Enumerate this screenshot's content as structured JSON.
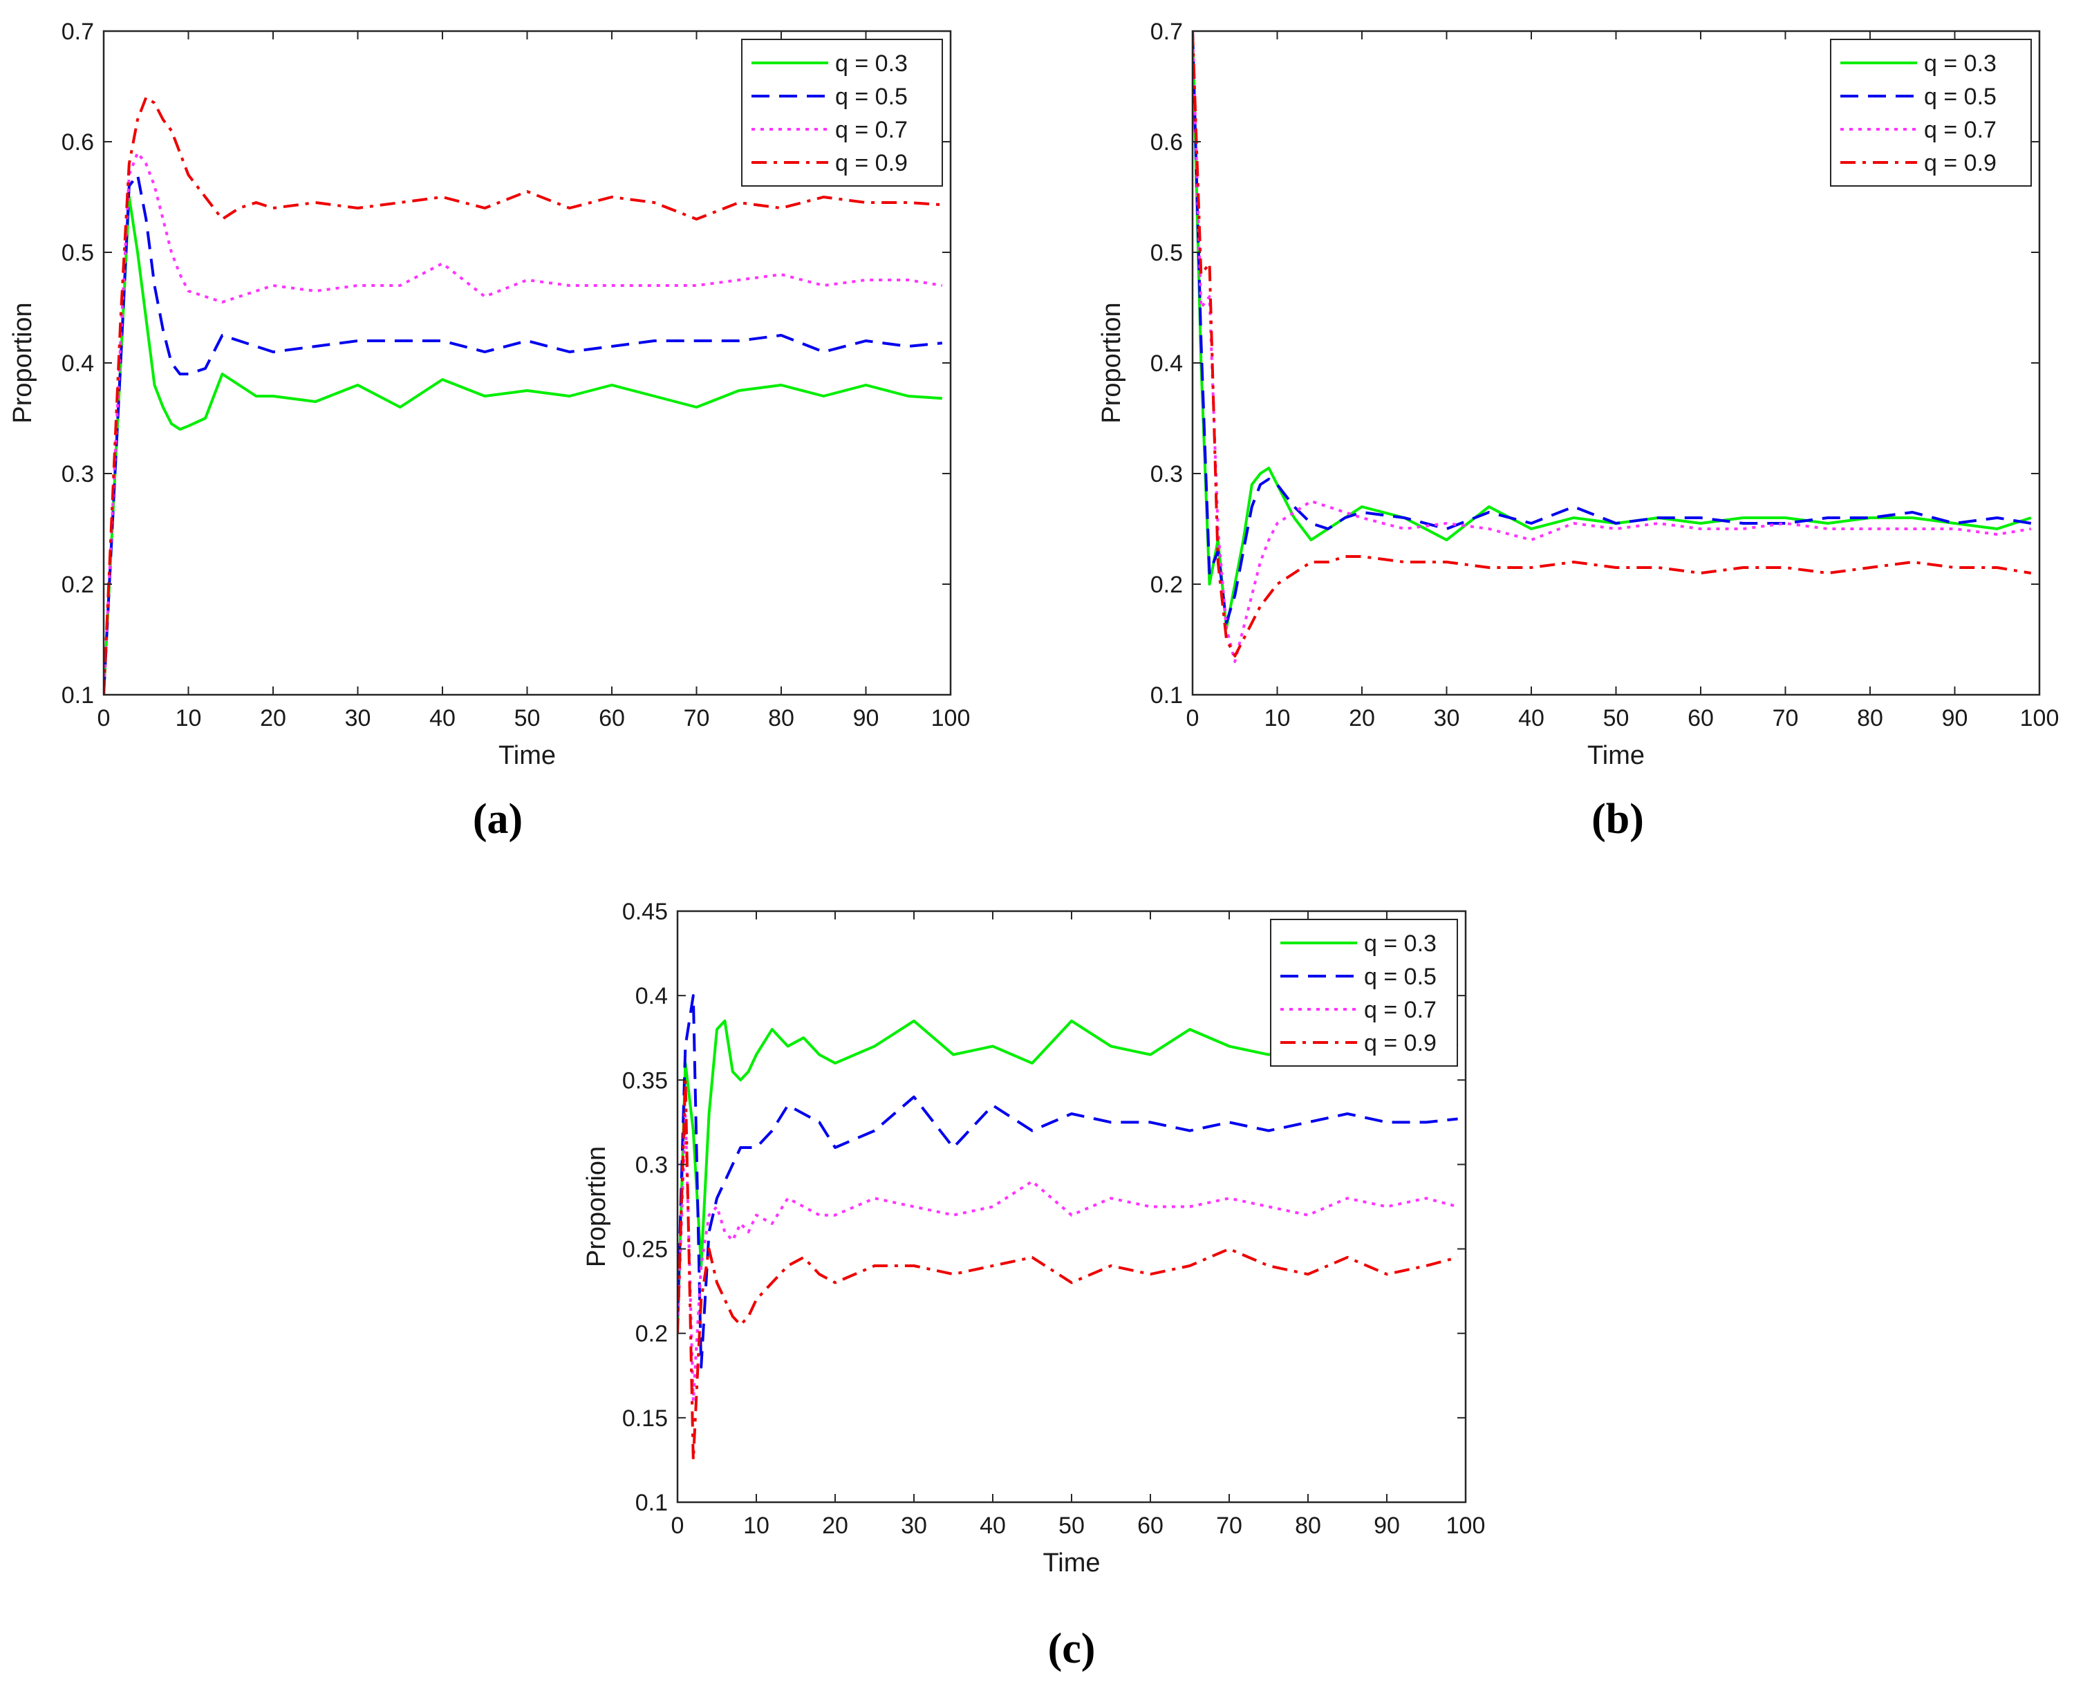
{
  "captions": [
    "(a)",
    "(b)",
    "(c)"
  ],
  "chart_data": [
    {
      "type": "line",
      "panel": "(a)",
      "xlabel": "Time",
      "ylabel": "Proportion",
      "xlim": [
        0,
        100
      ],
      "ylim": [
        0.1,
        0.7
      ],
      "xticks": [
        "0",
        "10",
        "20",
        "30",
        "40",
        "50",
        "60",
        "70",
        "80",
        "90",
        "100"
      ],
      "yticks": [
        "0.1",
        "0.2",
        "0.3",
        "0.4",
        "0.5",
        "0.6",
        "0.7"
      ],
      "legend_position": "top-right",
      "series": [
        {
          "name": "q = 0.3",
          "color": "#00ee00",
          "dash": "solid",
          "x": [
            0,
            1,
            2,
            3,
            4,
            5,
            6,
            7,
            8,
            9,
            10,
            12,
            14,
            16,
            18,
            20,
            25,
            30,
            35,
            40,
            45,
            50,
            55,
            60,
            65,
            70,
            75,
            80,
            85,
            90,
            95,
            99
          ],
          "y": [
            0.1,
            0.25,
            0.4,
            0.55,
            0.5,
            0.44,
            0.38,
            0.36,
            0.345,
            0.34,
            0.343,
            0.35,
            0.39,
            0.38,
            0.37,
            0.37,
            0.365,
            0.38,
            0.36,
            0.385,
            0.37,
            0.375,
            0.37,
            0.38,
            0.37,
            0.36,
            0.375,
            0.38,
            0.37,
            0.38,
            0.37,
            0.368
          ]
        },
        {
          "name": "q = 0.5",
          "color": "#0000ee",
          "dash": "dash",
          "x": [
            0,
            1,
            2,
            3,
            4,
            5,
            6,
            7,
            8,
            9,
            10,
            12,
            14,
            16,
            18,
            20,
            25,
            30,
            35,
            40,
            45,
            50,
            55,
            60,
            65,
            70,
            75,
            80,
            85,
            90,
            95,
            99
          ],
          "y": [
            0.1,
            0.25,
            0.4,
            0.56,
            0.57,
            0.53,
            0.47,
            0.43,
            0.4,
            0.39,
            0.39,
            0.395,
            0.425,
            0.42,
            0.415,
            0.41,
            0.415,
            0.42,
            0.42,
            0.42,
            0.41,
            0.42,
            0.41,
            0.415,
            0.42,
            0.42,
            0.42,
            0.425,
            0.41,
            0.42,
            0.415,
            0.418
          ]
        },
        {
          "name": "q = 0.7",
          "color": "#ff33ff",
          "dash": "dot",
          "x": [
            0,
            1,
            2,
            3,
            4,
            5,
            6,
            7,
            8,
            9,
            10,
            12,
            14,
            16,
            18,
            20,
            25,
            30,
            35,
            40,
            45,
            50,
            55,
            60,
            65,
            70,
            75,
            80,
            85,
            90,
            95,
            99
          ],
          "y": [
            0.1,
            0.26,
            0.42,
            0.57,
            0.59,
            0.58,
            0.56,
            0.53,
            0.5,
            0.48,
            0.465,
            0.46,
            0.455,
            0.46,
            0.465,
            0.47,
            0.465,
            0.47,
            0.47,
            0.49,
            0.46,
            0.475,
            0.47,
            0.47,
            0.47,
            0.47,
            0.475,
            0.48,
            0.47,
            0.475,
            0.475,
            0.47
          ]
        },
        {
          "name": "q = 0.9",
          "color": "#ee0000",
          "dash": "dashdot",
          "x": [
            0,
            1,
            2,
            3,
            4,
            5,
            6,
            7,
            8,
            9,
            10,
            12,
            14,
            16,
            18,
            20,
            25,
            30,
            35,
            40,
            45,
            50,
            55,
            60,
            65,
            70,
            75,
            80,
            85,
            90,
            95,
            99
          ],
          "y": [
            0.1,
            0.27,
            0.44,
            0.58,
            0.62,
            0.64,
            0.635,
            0.62,
            0.61,
            0.59,
            0.57,
            0.55,
            0.53,
            0.54,
            0.545,
            0.54,
            0.545,
            0.54,
            0.545,
            0.55,
            0.54,
            0.555,
            0.54,
            0.55,
            0.545,
            0.53,
            0.545,
            0.54,
            0.55,
            0.545,
            0.545,
            0.543
          ]
        }
      ]
    },
    {
      "type": "line",
      "panel": "(b)",
      "xlabel": "Time",
      "ylabel": "Proportion",
      "xlim": [
        0,
        100
      ],
      "ylim": [
        0.1,
        0.7
      ],
      "xticks": [
        "0",
        "10",
        "20",
        "30",
        "40",
        "50",
        "60",
        "70",
        "80",
        "90",
        "100"
      ],
      "yticks": [
        "0.1",
        "0.2",
        "0.3",
        "0.4",
        "0.5",
        "0.6",
        "0.7"
      ],
      "legend_position": "top-right",
      "series": [
        {
          "name": "q = 0.3",
          "color": "#00ee00",
          "dash": "solid",
          "x": [
            0,
            1,
            2,
            3,
            4,
            5,
            6,
            7,
            8,
            9,
            10,
            12,
            14,
            16,
            18,
            20,
            25,
            30,
            35,
            40,
            45,
            50,
            55,
            60,
            65,
            70,
            75,
            80,
            85,
            90,
            95,
            99
          ],
          "y": [
            0.7,
            0.4,
            0.2,
            0.24,
            0.16,
            0.2,
            0.24,
            0.29,
            0.3,
            0.305,
            0.29,
            0.26,
            0.24,
            0.25,
            0.26,
            0.27,
            0.26,
            0.24,
            0.27,
            0.25,
            0.26,
            0.255,
            0.26,
            0.255,
            0.26,
            0.26,
            0.255,
            0.26,
            0.26,
            0.255,
            0.25,
            0.26
          ]
        },
        {
          "name": "q = 0.5",
          "color": "#0000ee",
          "dash": "dash",
          "x": [
            0,
            1,
            2,
            3,
            4,
            5,
            6,
            7,
            8,
            9,
            10,
            12,
            14,
            16,
            18,
            20,
            25,
            30,
            35,
            40,
            45,
            50,
            55,
            60,
            65,
            70,
            75,
            80,
            85,
            90,
            95,
            99
          ],
          "y": [
            0.7,
            0.42,
            0.21,
            0.23,
            0.165,
            0.19,
            0.23,
            0.27,
            0.29,
            0.295,
            0.29,
            0.27,
            0.255,
            0.25,
            0.26,
            0.265,
            0.26,
            0.25,
            0.265,
            0.255,
            0.27,
            0.255,
            0.26,
            0.26,
            0.255,
            0.255,
            0.26,
            0.26,
            0.265,
            0.255,
            0.26,
            0.255
          ]
        },
        {
          "name": "q = 0.7",
          "color": "#ff33ff",
          "dash": "dot",
          "x": [
            0,
            1,
            2,
            3,
            4,
            5,
            6,
            7,
            8,
            9,
            10,
            12,
            14,
            16,
            18,
            20,
            25,
            30,
            35,
            40,
            45,
            50,
            55,
            60,
            65,
            70,
            75,
            80,
            85,
            90,
            95,
            99
          ],
          "y": [
            0.7,
            0.45,
            0.46,
            0.25,
            0.16,
            0.13,
            0.16,
            0.19,
            0.22,
            0.24,
            0.255,
            0.265,
            0.275,
            0.27,
            0.265,
            0.26,
            0.25,
            0.255,
            0.25,
            0.24,
            0.255,
            0.25,
            0.255,
            0.25,
            0.25,
            0.255,
            0.25,
            0.25,
            0.25,
            0.25,
            0.245,
            0.25
          ]
        },
        {
          "name": "q = 0.9",
          "color": "#ee0000",
          "dash": "dashdot",
          "x": [
            0,
            1,
            2,
            3,
            4,
            5,
            6,
            7,
            8,
            9,
            10,
            12,
            14,
            16,
            18,
            20,
            25,
            30,
            35,
            40,
            45,
            50,
            55,
            60,
            65,
            70,
            75,
            80,
            85,
            90,
            95,
            99
          ],
          "y": [
            0.7,
            0.48,
            0.49,
            0.22,
            0.15,
            0.135,
            0.15,
            0.165,
            0.18,
            0.19,
            0.2,
            0.21,
            0.22,
            0.22,
            0.225,
            0.225,
            0.22,
            0.22,
            0.215,
            0.215,
            0.22,
            0.215,
            0.215,
            0.21,
            0.215,
            0.215,
            0.21,
            0.215,
            0.22,
            0.215,
            0.215,
            0.21
          ]
        }
      ]
    },
    {
      "type": "line",
      "panel": "(c)",
      "xlabel": "Time",
      "ylabel": "Proportion",
      "xlim": [
        0,
        100
      ],
      "ylim": [
        0.1,
        0.45
      ],
      "xticks": [
        "0",
        "10",
        "20",
        "30",
        "40",
        "50",
        "60",
        "70",
        "80",
        "90",
        "100"
      ],
      "yticks": [
        "0.1",
        "0.15",
        "0.2",
        "0.25",
        "0.3",
        "0.35",
        "0.4",
        "0.45"
      ],
      "legend_position": "top-right",
      "series": [
        {
          "name": "q = 0.3",
          "color": "#00ee00",
          "dash": "solid",
          "x": [
            0,
            1,
            2,
            3,
            4,
            5,
            6,
            7,
            8,
            9,
            10,
            12,
            14,
            16,
            18,
            20,
            25,
            30,
            35,
            40,
            45,
            50,
            55,
            60,
            65,
            70,
            75,
            80,
            85,
            90,
            95,
            99
          ],
          "y": [
            0.2,
            0.36,
            0.32,
            0.24,
            0.33,
            0.38,
            0.385,
            0.355,
            0.35,
            0.355,
            0.365,
            0.38,
            0.37,
            0.375,
            0.365,
            0.36,
            0.37,
            0.385,
            0.365,
            0.37,
            0.36,
            0.385,
            0.37,
            0.365,
            0.38,
            0.37,
            0.365,
            0.37,
            0.375,
            0.37,
            0.38,
            0.37
          ]
        },
        {
          "name": "q = 0.5",
          "color": "#0000ee",
          "dash": "dash",
          "x": [
            0,
            1,
            2,
            3,
            4,
            5,
            6,
            7,
            8,
            9,
            10,
            12,
            14,
            16,
            18,
            20,
            25,
            30,
            35,
            40,
            45,
            50,
            55,
            60,
            65,
            70,
            75,
            80,
            85,
            90,
            95,
            99
          ],
          "y": [
            0.21,
            0.37,
            0.4,
            0.18,
            0.26,
            0.28,
            0.29,
            0.3,
            0.31,
            0.31,
            0.31,
            0.32,
            0.335,
            0.33,
            0.325,
            0.31,
            0.32,
            0.34,
            0.31,
            0.335,
            0.32,
            0.33,
            0.325,
            0.325,
            0.32,
            0.325,
            0.32,
            0.325,
            0.33,
            0.325,
            0.325,
            0.327
          ]
        },
        {
          "name": "q = 0.7",
          "color": "#ff33ff",
          "dash": "dot",
          "x": [
            0,
            1,
            2,
            3,
            4,
            5,
            6,
            7,
            8,
            9,
            10,
            12,
            14,
            16,
            18,
            20,
            25,
            30,
            35,
            40,
            45,
            50,
            55,
            60,
            65,
            70,
            75,
            80,
            85,
            90,
            95,
            99
          ],
          "y": [
            0.2,
            0.33,
            0.16,
            0.24,
            0.27,
            0.275,
            0.26,
            0.255,
            0.265,
            0.26,
            0.27,
            0.265,
            0.28,
            0.275,
            0.27,
            0.27,
            0.28,
            0.275,
            0.27,
            0.275,
            0.29,
            0.27,
            0.28,
            0.275,
            0.275,
            0.28,
            0.275,
            0.27,
            0.28,
            0.275,
            0.28,
            0.275
          ]
        },
        {
          "name": "q = 0.9",
          "color": "#ee0000",
          "dash": "dashdot",
          "x": [
            0,
            1,
            2,
            3,
            4,
            5,
            6,
            7,
            8,
            9,
            10,
            12,
            14,
            16,
            18,
            20,
            25,
            30,
            35,
            40,
            45,
            50,
            55,
            60,
            65,
            70,
            75,
            80,
            85,
            90,
            95,
            99
          ],
          "y": [
            0.2,
            0.35,
            0.125,
            0.22,
            0.25,
            0.23,
            0.22,
            0.21,
            0.205,
            0.21,
            0.22,
            0.23,
            0.24,
            0.245,
            0.235,
            0.23,
            0.24,
            0.24,
            0.235,
            0.24,
            0.245,
            0.23,
            0.24,
            0.235,
            0.24,
            0.25,
            0.24,
            0.235,
            0.245,
            0.235,
            0.24,
            0.245
          ]
        }
      ]
    }
  ]
}
